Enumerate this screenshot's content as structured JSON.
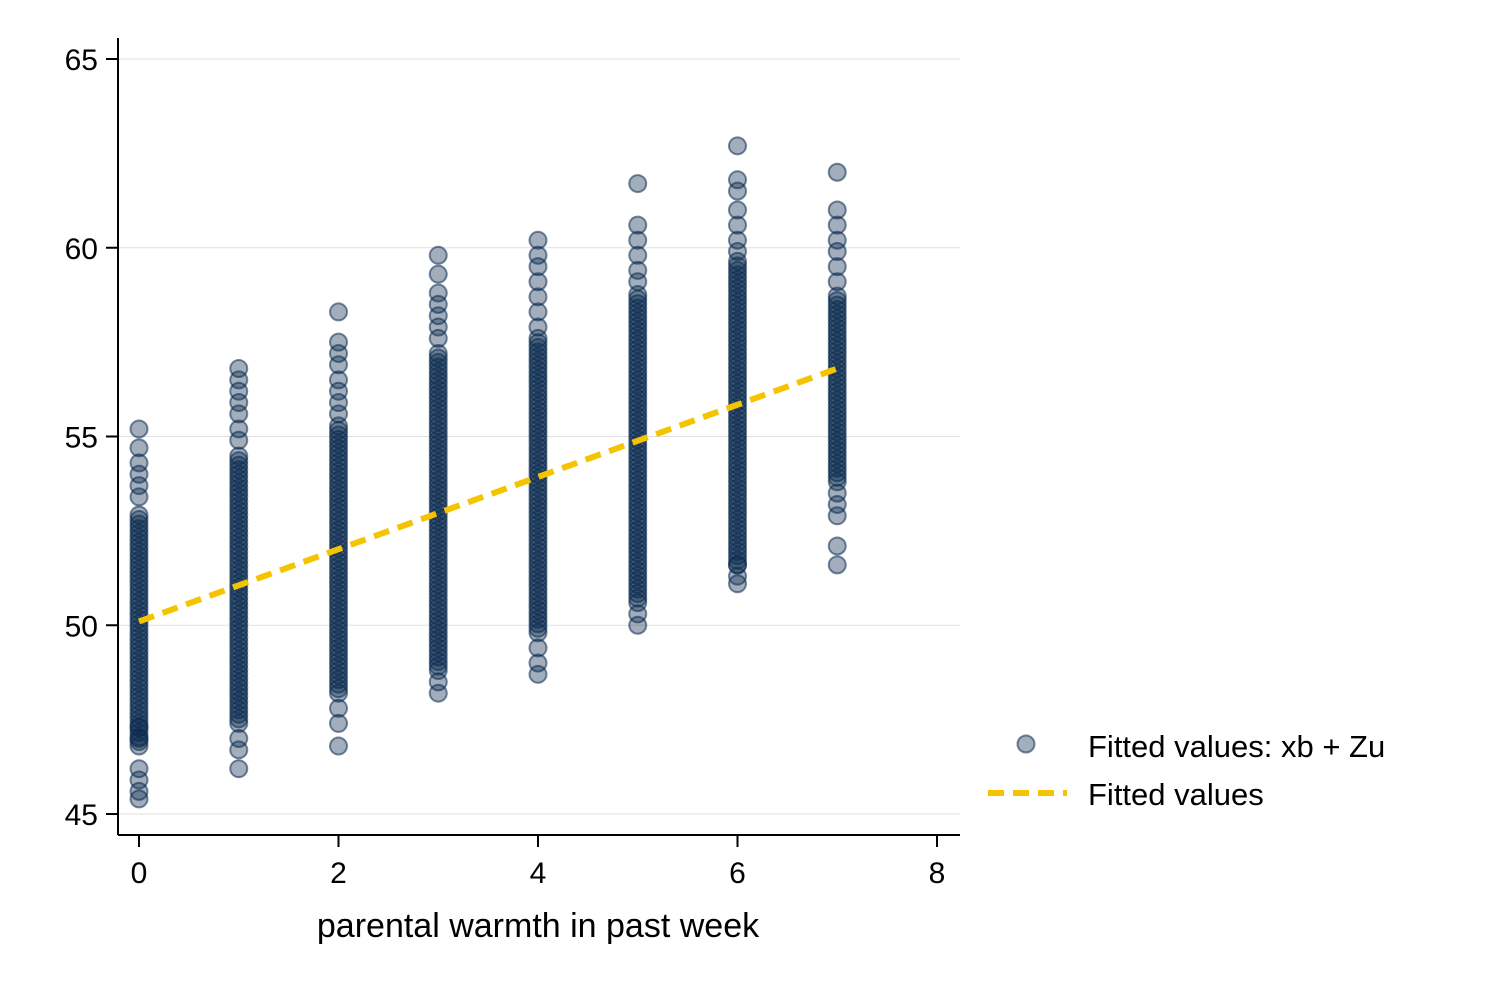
{
  "chart_data": {
    "type": "scatter",
    "title": "",
    "xlabel": "parental warmth in past week",
    "ylabel": "",
    "xlim": [
      0,
      8
    ],
    "ylim": [
      45,
      65
    ],
    "x_ticks": [
      "0",
      "2",
      "4",
      "6",
      "8"
    ],
    "y_ticks": [
      "45",
      "50",
      "55",
      "60",
      "65"
    ],
    "grid": "horizontal",
    "legend_position": "right",
    "colors": {
      "points": "#0a2a4e",
      "line": "#f5c400",
      "grid": "#e0e0e0",
      "axis": "#000000"
    },
    "series": [
      {
        "name": "Fitted values: xb + Zu",
        "kind": "scatter",
        "columns": [
          {
            "x": 0,
            "dense_range": [
              46.8,
              53.0
            ],
            "points": [
              45.4,
              45.6,
              45.9,
              46.2,
              47.0,
              47.3,
              53.4,
              53.7,
              54.0,
              54.3,
              54.7,
              55.2
            ]
          },
          {
            "x": 1,
            "dense_range": [
              47.4,
              54.5
            ],
            "points": [
              46.2,
              46.7,
              47.0,
              54.9,
              55.2,
              55.6,
              55.9,
              56.2,
              56.5,
              56.8
            ]
          },
          {
            "x": 2,
            "dense_range": [
              48.2,
              55.3
            ],
            "points": [
              46.8,
              47.4,
              47.8,
              55.6,
              55.9,
              56.2,
              56.5,
              56.9,
              57.2,
              57.5,
              58.3
            ]
          },
          {
            "x": 3,
            "dense_range": [
              48.8,
              57.3
            ],
            "points": [
              48.2,
              48.5,
              57.6,
              57.9,
              58.2,
              58.5,
              58.8,
              59.3,
              59.8
            ]
          },
          {
            "x": 4,
            "dense_range": [
              49.8,
              57.6
            ],
            "points": [
              48.7,
              49.0,
              49.4,
              57.9,
              58.3,
              58.7,
              59.1,
              59.5,
              59.8,
              60.2
            ]
          },
          {
            "x": 5,
            "dense_range": [
              50.6,
              58.8
            ],
            "points": [
              50.0,
              50.3,
              59.1,
              59.4,
              59.8,
              60.2,
              60.6,
              61.7
            ]
          },
          {
            "x": 6,
            "dense_range": [
              51.6,
              59.7
            ],
            "points": [
              51.1,
              51.3,
              51.6,
              59.9,
              60.2,
              60.6,
              61.0,
              61.5,
              61.8,
              62.7
            ]
          },
          {
            "x": 7,
            "dense_range": [
              53.8,
              58.8
            ],
            "points": [
              51.6,
              52.1,
              52.9,
              53.2,
              53.5,
              59.1,
              59.5,
              59.9,
              60.2,
              60.6,
              61.0,
              62.0
            ]
          }
        ]
      },
      {
        "name": "Fitted values",
        "kind": "line",
        "style": "dashed",
        "x": [
          0,
          7
        ],
        "y": [
          50.1,
          56.8
        ]
      }
    ]
  }
}
